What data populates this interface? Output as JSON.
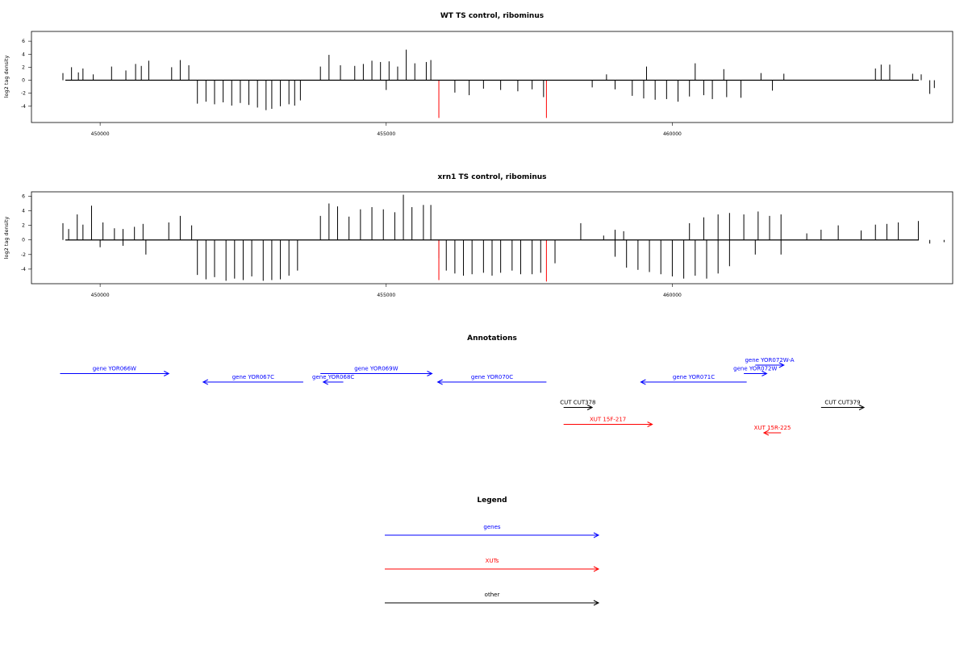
{
  "chart_data": [
    {
      "type": "bar",
      "title": "WT TS control, ribominus",
      "ylabel": "log2 tag density",
      "xlabel": "",
      "xlim": [
        448800,
        464900
      ],
      "ylim": [
        -6.5,
        7.5
      ],
      "xticks": [
        450000,
        455000,
        460000
      ],
      "xtick_labels": [
        "450000",
        "455000",
        "460000"
      ],
      "yticks": [
        -4,
        -2,
        0,
        2,
        4,
        6
      ],
      "ytick_labels": [
        "-4",
        "-2",
        "0",
        "2",
        "4",
        "6"
      ],
      "grid": false,
      "series": [
        {
          "color": "#000000",
          "bars": [
            [
              449350,
              1.1
            ],
            [
              449500,
              2.0
            ],
            [
              449620,
              1.2
            ],
            [
              449700,
              1.8
            ],
            [
              449880,
              0.9
            ],
            [
              450200,
              2.1
            ],
            [
              450450,
              1.5
            ],
            [
              450620,
              2.5
            ],
            [
              450720,
              2.2
            ],
            [
              450850,
              3.0
            ],
            [
              451250,
              2.0
            ],
            [
              451400,
              3.1
            ],
            [
              451550,
              2.3
            ],
            [
              451700,
              -3.6
            ],
            [
              451850,
              -3.3
            ],
            [
              452000,
              -3.7
            ],
            [
              452150,
              -3.4
            ],
            [
              452300,
              -3.9
            ],
            [
              452450,
              -3.5
            ],
            [
              452600,
              -3.8
            ],
            [
              452750,
              -4.2
            ],
            [
              452900,
              -4.6
            ],
            [
              453000,
              -4.4
            ],
            [
              453150,
              -4.0
            ],
            [
              453300,
              -3.7
            ],
            [
              453400,
              -3.9
            ],
            [
              453500,
              -3.1
            ],
            [
              453850,
              2.1
            ],
            [
              454000,
              3.9
            ],
            [
              454200,
              2.3
            ],
            [
              454450,
              2.2
            ],
            [
              454600,
              2.5
            ],
            [
              454750,
              3.0
            ],
            [
              454900,
              2.8
            ],
            [
              455050,
              2.9
            ],
            [
              455200,
              2.1
            ],
            [
              455350,
              4.7
            ],
            [
              455500,
              2.6
            ],
            [
              455700,
              2.8
            ],
            [
              455780,
              3.1
            ],
            [
              455000,
              -1.5
            ],
            [
              456200,
              -1.9
            ],
            [
              456450,
              -2.3
            ],
            [
              456700,
              -1.3
            ],
            [
              457000,
              -1.5
            ],
            [
              457300,
              -1.7
            ],
            [
              457550,
              -1.4
            ],
            [
              457750,
              -2.6
            ],
            [
              458600,
              -1.1
            ],
            [
              459000,
              -1.4
            ],
            [
              458850,
              0.9
            ],
            [
              459550,
              2.1
            ],
            [
              459300,
              -2.4
            ],
            [
              459500,
              -2.8
            ],
            [
              459700,
              -3.0
            ],
            [
              459900,
              -2.9
            ],
            [
              460100,
              -3.3
            ],
            [
              460300,
              -2.5
            ],
            [
              460550,
              -2.3
            ],
            [
              460700,
              -2.9
            ],
            [
              460950,
              -2.6
            ],
            [
              461200,
              -2.7
            ],
            [
              460400,
              2.6
            ],
            [
              460900,
              1.7
            ],
            [
              461550,
              1.1
            ],
            [
              461950,
              1.0
            ],
            [
              461750,
              -1.6
            ],
            [
              463550,
              1.8
            ],
            [
              463650,
              2.4
            ],
            [
              463800,
              2.4
            ],
            [
              464200,
              1.0
            ],
            [
              464350,
              0.9
            ],
            [
              464500,
              -2.1
            ],
            [
              464580,
              -1.2
            ]
          ]
        },
        {
          "color": "#ff0000",
          "bars": [
            [
              455920,
              -5.8
            ],
            [
              457800,
              -5.8
            ]
          ]
        }
      ]
    },
    {
      "type": "bar",
      "title": "xrn1 TS control, ribominus",
      "ylabel": "log2 tag density",
      "xlabel": "",
      "xlim": [
        448800,
        464900
      ],
      "ylim": [
        -6.0,
        6.6
      ],
      "xticks": [
        450000,
        455000,
        460000
      ],
      "xtick_labels": [
        "450000",
        "455000",
        "460000"
      ],
      "yticks": [
        -4,
        -2,
        0,
        2,
        4,
        6
      ],
      "ytick_labels": [
        "-4",
        "-2",
        "0",
        "2",
        "4",
        "6"
      ],
      "grid": false,
      "series": [
        {
          "color": "#000000",
          "bars": [
            [
              449350,
              2.3
            ],
            [
              449450,
              1.5
            ],
            [
              449600,
              3.5
            ],
            [
              449700,
              2.1
            ],
            [
              449850,
              4.7
            ],
            [
              450050,
              2.4
            ],
            [
              450250,
              1.6
            ],
            [
              450400,
              1.5
            ],
            [
              450600,
              1.8
            ],
            [
              450750,
              2.2
            ],
            [
              451200,
              2.4
            ],
            [
              451400,
              3.3
            ],
            [
              451600,
              2.0
            ],
            [
              450000,
              -1.0
            ],
            [
              450400,
              -0.8
            ],
            [
              450800,
              -2.0
            ],
            [
              451700,
              -4.8
            ],
            [
              451850,
              -5.4
            ],
            [
              452000,
              -5.1
            ],
            [
              452200,
              -5.6
            ],
            [
              452350,
              -5.3
            ],
            [
              452500,
              -5.5
            ],
            [
              452650,
              -5.0
            ],
            [
              452850,
              -5.6
            ],
            [
              453000,
              -5.5
            ],
            [
              453150,
              -5.4
            ],
            [
              453300,
              -4.9
            ],
            [
              453450,
              -4.2
            ],
            [
              453850,
              3.3
            ],
            [
              454000,
              5.0
            ],
            [
              454150,
              4.6
            ],
            [
              454350,
              3.2
            ],
            [
              454550,
              4.2
            ],
            [
              454750,
              4.5
            ],
            [
              454950,
              4.2
            ],
            [
              455150,
              3.8
            ],
            [
              455300,
              6.2
            ],
            [
              455450,
              4.5
            ],
            [
              455650,
              4.8
            ],
            [
              455780,
              4.8
            ],
            [
              455920,
              -2.5
            ],
            [
              456050,
              -4.2
            ],
            [
              456200,
              -4.6
            ],
            [
              456350,
              -4.9
            ],
            [
              456500,
              -4.7
            ],
            [
              456700,
              -4.5
            ],
            [
              456850,
              -4.9
            ],
            [
              457000,
              -4.5
            ],
            [
              457200,
              -4.2
            ],
            [
              457350,
              -4.7
            ],
            [
              457550,
              -4.7
            ],
            [
              457700,
              -4.5
            ],
            [
              457950,
              -3.2
            ],
            [
              458400,
              2.3
            ],
            [
              458800,
              0.6
            ],
            [
              459000,
              1.4
            ],
            [
              459150,
              1.2
            ],
            [
              459000,
              -2.3
            ],
            [
              459200,
              -3.8
            ],
            [
              459400,
              -4.1
            ],
            [
              459600,
              -4.4
            ],
            [
              459800,
              -4.7
            ],
            [
              460000,
              -5.0
            ],
            [
              460200,
              -5.3
            ],
            [
              460400,
              -4.9
            ],
            [
              460600,
              -5.3
            ],
            [
              460800,
              -4.6
            ],
            [
              461000,
              -3.6
            ],
            [
              460300,
              2.3
            ],
            [
              460550,
              3.1
            ],
            [
              460800,
              3.5
            ],
            [
              461000,
              3.7
            ],
            [
              461250,
              3.5
            ],
            [
              461500,
              3.9
            ],
            [
              461700,
              3.3
            ],
            [
              461900,
              3.5
            ],
            [
              461450,
              -2.0
            ],
            [
              461900,
              -2.0
            ],
            [
              462350,
              0.9
            ],
            [
              462600,
              1.4
            ],
            [
              462900,
              2.0
            ],
            [
              463300,
              1.3
            ],
            [
              463550,
              2.1
            ],
            [
              463750,
              2.2
            ],
            [
              463950,
              2.4
            ],
            [
              464300,
              2.6
            ],
            [
              464500,
              -0.5
            ],
            [
              464750,
              -0.3
            ]
          ]
        },
        {
          "color": "#ff0000",
          "bars": [
            [
              455920,
              -5.5
            ],
            [
              457800,
              -5.7
            ]
          ]
        }
      ]
    }
  ],
  "annotations": {
    "title": "Annotations",
    "xlim": [
      448800,
      464900
    ],
    "items": [
      {
        "label": "gene YOR066W",
        "start": 449300,
        "end": 451200,
        "dir": "right",
        "row": 1,
        "color": "#0000ff"
      },
      {
        "label": "gene YOR067C",
        "start": 453550,
        "end": 451800,
        "dir": "left",
        "row": 2,
        "color": "#0000ff"
      },
      {
        "label": "gene YOR068C",
        "start": 454250,
        "end": 453900,
        "dir": "left",
        "row": 2,
        "color": "#0000ff"
      },
      {
        "label": "gene YOR069W",
        "start": 453850,
        "end": 455800,
        "dir": "right",
        "row": 1,
        "color": "#0000ff"
      },
      {
        "label": "gene YOR070C",
        "start": 457800,
        "end": 455900,
        "dir": "left",
        "row": 2,
        "color": "#0000ff"
      },
      {
        "label": "gene YOR071C",
        "start": 461300,
        "end": 459450,
        "dir": "left",
        "row": 2,
        "color": "#0000ff"
      },
      {
        "label": "gene YOR072W",
        "start": 461250,
        "end": 461650,
        "dir": "right",
        "row": 1,
        "color": "#0000ff"
      },
      {
        "label": "gene YOR072W-A",
        "start": 461450,
        "end": 461950,
        "dir": "right",
        "row": 0,
        "color": "#0000ff"
      },
      {
        "label": "CUT CUT378",
        "start": 458100,
        "end": 458600,
        "dir": "right",
        "row": 5,
        "color": "#000000"
      },
      {
        "label": "CUT CUT379",
        "start": 462600,
        "end": 463350,
        "dir": "right",
        "row": 5,
        "color": "#000000"
      },
      {
        "label": "XUT 15F-217",
        "start": 458100,
        "end": 459650,
        "dir": "right",
        "row": 7,
        "color": "#ff0000"
      },
      {
        "label": "XUT 15R-225",
        "start": 461900,
        "end": 461600,
        "dir": "left",
        "row": 8,
        "color": "#ff0000"
      }
    ]
  },
  "legend": {
    "title": "Legend",
    "items": [
      {
        "label": "genes",
        "color": "#0000ff"
      },
      {
        "label": "XUTs",
        "color": "#ff0000"
      },
      {
        "label": "other",
        "color": "#000000"
      }
    ]
  }
}
